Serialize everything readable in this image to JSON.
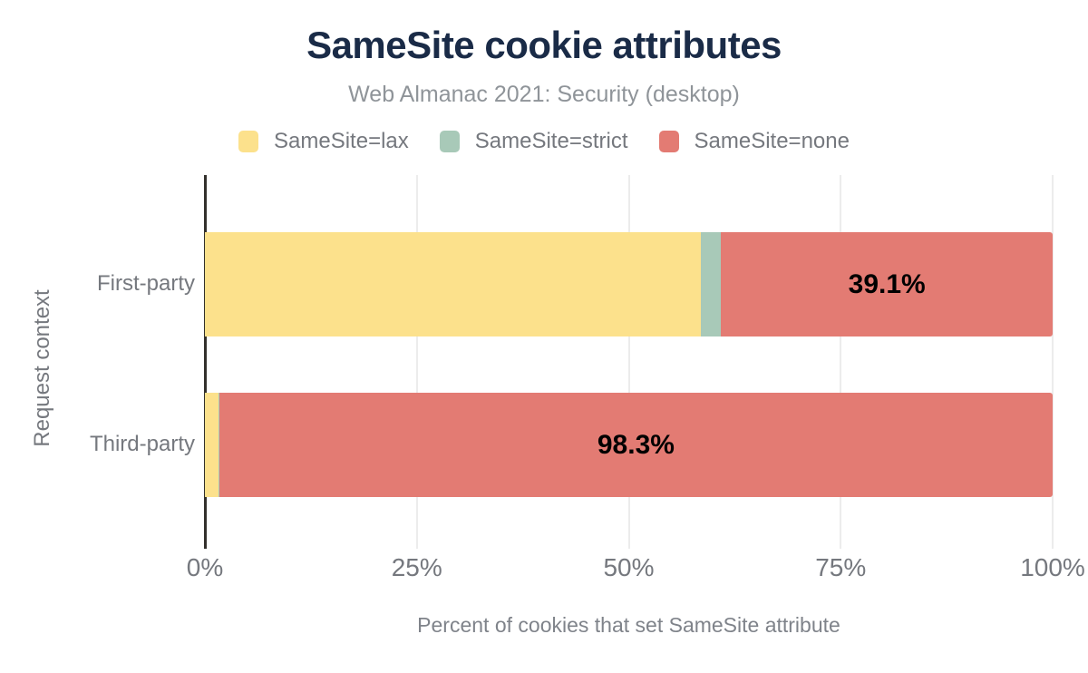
{
  "chart_data": {
    "type": "bar",
    "orientation": "horizontal",
    "stacked": true,
    "title": "SameSite cookie attributes",
    "subtitle": "Web Almanac 2021: Security (desktop)",
    "xlabel": "Percent of cookies that set SameSite attribute",
    "ylabel": "Request context",
    "xlim": [
      0,
      100
    ],
    "xticks": [
      {
        "value": 0,
        "label": "0%"
      },
      {
        "value": 25,
        "label": "25%"
      },
      {
        "value": 50,
        "label": "50%"
      },
      {
        "value": 75,
        "label": "75%"
      },
      {
        "value": 100,
        "label": "100%"
      }
    ],
    "grid": "vertical-gridlines-on",
    "legend_position": "top",
    "categories": [
      "First-party",
      "Third-party"
    ],
    "series": [
      {
        "name": "SameSite=lax",
        "color": "#FCE18C",
        "values": [
          58.5,
          1.6
        ],
        "value_labels": [
          "",
          ""
        ]
      },
      {
        "name": "SameSite=strict",
        "color": "#A8C9B8",
        "values": [
          2.4,
          0.1
        ],
        "value_labels": [
          "",
          ""
        ]
      },
      {
        "name": "SameSite=none",
        "color": "#E37B73",
        "values": [
          39.1,
          98.3
        ],
        "value_labels": [
          "39.1%",
          "98.3%"
        ]
      }
    ]
  },
  "colors": {
    "title_text": "#1A2B47",
    "muted_text": "#75787E",
    "axis_line": "#33302C",
    "gridline": "#ECECEC",
    "data_label_text": "#000000",
    "background": "#FFFFFF"
  }
}
